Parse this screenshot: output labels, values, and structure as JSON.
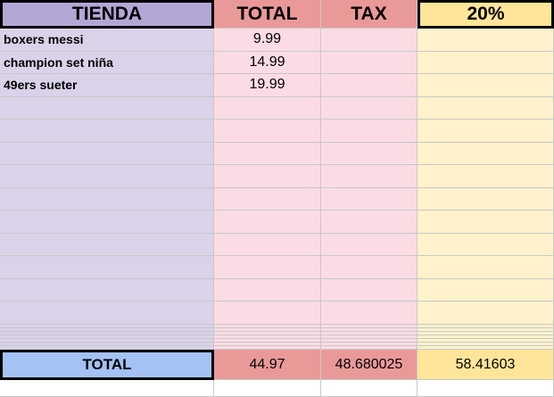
{
  "header": [
    "TIENDA",
    "TOTAL",
    "TAX",
    "20%"
  ],
  "rows": [
    {
      "item": "boxers messi",
      "total": "9.99"
    },
    {
      "item": "champion set niña",
      "total": "14.99"
    },
    {
      "item": "49ers sueter",
      "total": "19.99"
    }
  ],
  "totals": {
    "label": "TOTAL",
    "total": "44.97",
    "tax": "48.680025",
    "pct": "58.41603"
  }
}
